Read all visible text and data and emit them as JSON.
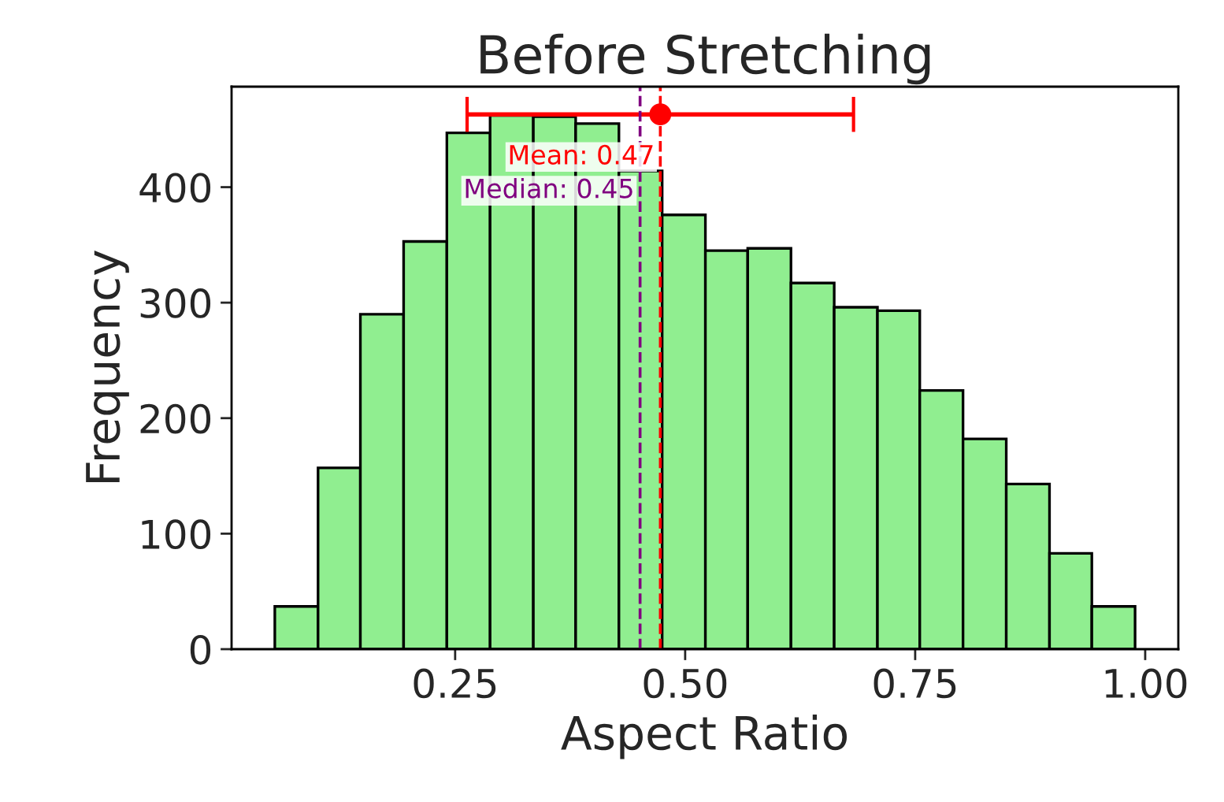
{
  "chart_data": {
    "type": "histogram",
    "title": "Before Stretching",
    "xlabel": "Aspect Ratio",
    "ylabel": "Frequency",
    "series": [
      {
        "color": "#90ee90",
        "bins": [
          0.054,
          0.101,
          0.147,
          0.194,
          0.241,
          0.288,
          0.335,
          0.381,
          0.428,
          0.475,
          0.522,
          0.568,
          0.615,
          0.662,
          0.709,
          0.755,
          0.802,
          0.849,
          0.896,
          0.942,
          0.989
        ],
        "values": [
          37,
          157,
          290,
          353,
          447,
          462,
          461,
          455,
          414,
          376,
          345,
          347,
          317,
          296,
          293,
          224,
          182,
          143,
          83,
          37
        ]
      },
      {
        "type": "scatter",
        "color": "#ff0000",
        "x": [
          0.473
        ],
        "values": [
          463
        ],
        "xerrors": [
          0.21
        ]
      }
    ],
    "ref_lines": [
      {
        "axis": "x",
        "value": 0.473,
        "label": "Mean: 0.47",
        "color": "#ff0000",
        "line_style": "dashed"
      },
      {
        "axis": "x",
        "value": 0.451,
        "label": "Median: 0.45",
        "color": "#800080",
        "line_style": "dashed"
      }
    ],
    "xlim": [
      0.007,
      1.036
    ],
    "ylim": [
      0,
      487
    ],
    "xticks": [
      {
        "value": 0.25,
        "label": "0.25"
      },
      {
        "value": 0.5,
        "label": "0.50"
      },
      {
        "value": 0.75,
        "label": "0.75"
      },
      {
        "value": 1.0,
        "label": "1.00"
      }
    ],
    "yticks": [
      0,
      100,
      200,
      300,
      400
    ],
    "grid": false,
    "legend": false,
    "marker": "circle"
  }
}
